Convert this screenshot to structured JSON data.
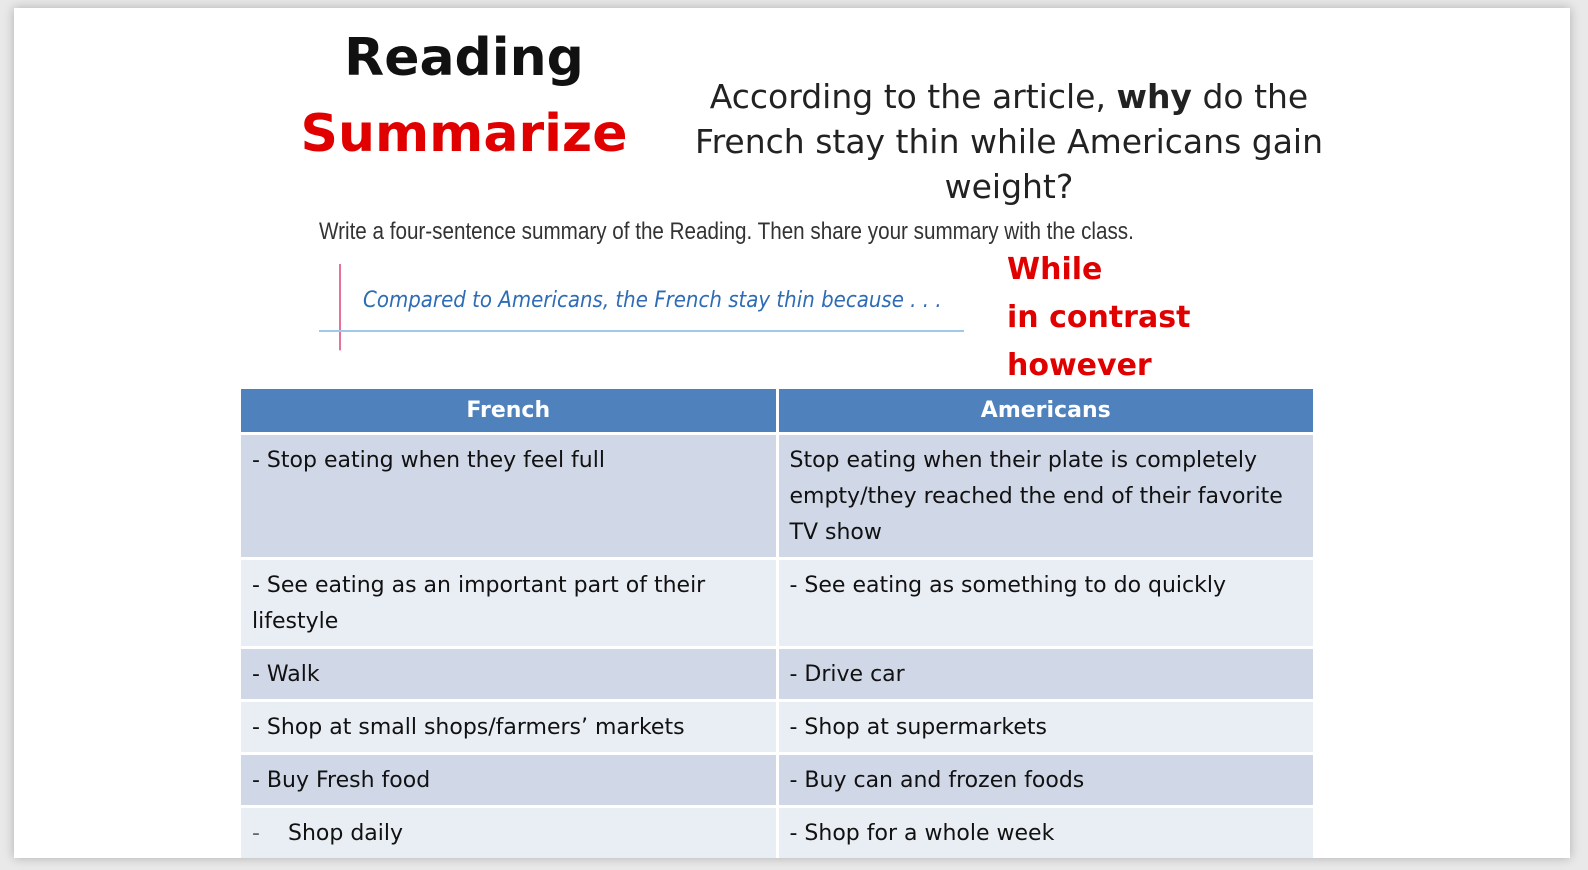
{
  "slide": {
    "title": "Reading",
    "subtitle": "Summarize",
    "question_part1": "According to the article, ",
    "question_emph": "why",
    "question_part2": " do the French stay thin while Americans gain weight?",
    "instruction": "Write a four-sentence summary of the Reading. Then share your summary with the class.",
    "note_text": "Compared to Americans, the French stay thin because . . .",
    "connectors": [
      "While",
      "in contrast",
      "however"
    ]
  },
  "table": {
    "headers": [
      "French",
      "Americans"
    ],
    "rows": [
      [
        "- Stop eating when they feel full",
        "Stop eating when their plate is completely empty/they reached the end of their favorite TV show"
      ],
      [
        "- See eating as an important part of their lifestyle",
        "- See eating as something to do quickly"
      ],
      [
        "- Walk",
        "- Drive car"
      ],
      [
        "- Shop at small shops/farmers’ markets",
        "- Shop at supermarkets"
      ],
      [
        "- Buy Fresh food",
        "- Buy can and frozen foods"
      ],
      [
        "Shop daily",
        "- Shop for a whole week"
      ]
    ],
    "last_row_bullet": "-"
  },
  "colors": {
    "accent_red": "#e00000",
    "header_blue": "#4f81bd",
    "row_dark": "#d0d8e8",
    "row_light": "#e9edf4",
    "note_ink": "#2e6cb5"
  }
}
